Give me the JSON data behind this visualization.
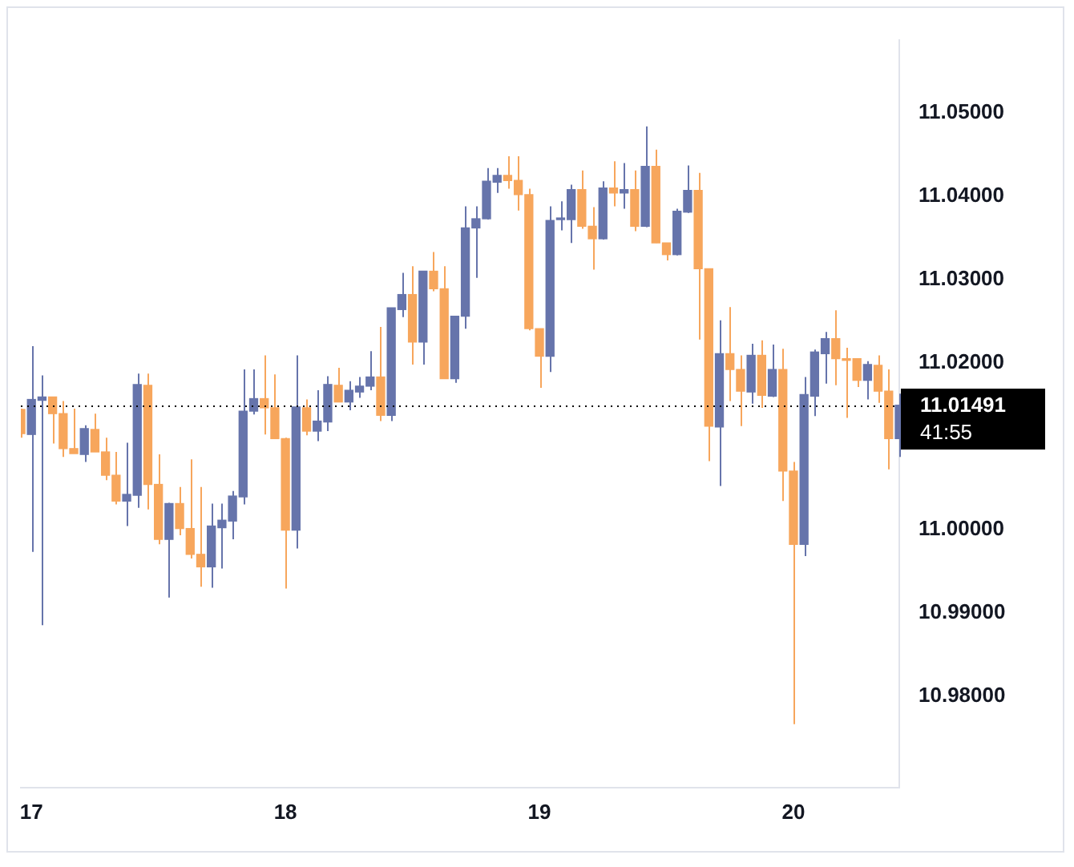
{
  "chart_data": {
    "type": "candlestick",
    "categories": [
      null,
      "17",
      null,
      null,
      null,
      null,
      null,
      null,
      null,
      null,
      null,
      null,
      null,
      null,
      null,
      null,
      null,
      null,
      null,
      null,
      null,
      null,
      null,
      null,
      null,
      "18",
      null,
      null,
      null,
      null,
      null,
      null,
      null,
      null,
      null,
      null,
      null,
      null,
      null,
      null,
      null,
      null,
      null,
      null,
      null,
      null,
      null,
      null,
      null,
      "19",
      null,
      null,
      null,
      null,
      null,
      null,
      null,
      null,
      null,
      null,
      null,
      null,
      null,
      null,
      null,
      null,
      null,
      null,
      null,
      null,
      null,
      null,
      null,
      "20",
      null,
      null,
      null,
      null,
      null,
      null,
      null,
      null,
      null,
      null
    ],
    "ohlc": [
      [
        11.0144,
        11.0145,
        11.011,
        11.0115
      ],
      [
        11.0114,
        11.022,
        10.9973,
        11.0156
      ],
      [
        11.0155,
        11.0185,
        10.9885,
        11.0159
      ],
      [
        11.0159,
        11.0159,
        11.0103,
        11.0139
      ],
      [
        11.0139,
        11.0154,
        11.0087,
        11.0097
      ],
      [
        11.0097,
        11.0145,
        11.0091,
        11.0091
      ],
      [
        11.009,
        11.0125,
        11.0081,
        11.0121
      ],
      [
        11.012,
        11.0139,
        11.0093,
        11.0093
      ],
      [
        11.0093,
        11.011,
        11.0059,
        11.0065
      ],
      [
        11.0065,
        11.0093,
        11.003,
        11.0034
      ],
      [
        11.0034,
        11.0104,
        11.0004,
        11.0042
      ],
      [
        11.0041,
        11.0187,
        11.0026,
        11.0174
      ],
      [
        11.0173,
        11.0187,
        11.0024,
        11.0054
      ],
      [
        11.0054,
        11.009,
        10.9982,
        10.9988
      ],
      [
        10.9988,
        11.0032,
        10.9918,
        11.0031
      ],
      [
        11.0031,
        11.0051,
        10.9993,
        11.0001
      ],
      [
        11.0001,
        11.0084,
        10.9965,
        10.997
      ],
      [
        10.997,
        11.0051,
        10.9931,
        10.9955
      ],
      [
        10.9955,
        11.0031,
        10.993,
        11.0004
      ],
      [
        11.0002,
        11.0031,
        10.9953,
        11.0011
      ],
      [
        11.001,
        11.0046,
        10.9988,
        11.004
      ],
      [
        11.0039,
        11.0192,
        11.003,
        11.0142
      ],
      [
        11.0142,
        11.0192,
        11.0138,
        11.0157
      ],
      [
        11.0157,
        11.0209,
        11.0114,
        11.0146
      ],
      [
        11.0146,
        11.0186,
        11.0109,
        11.0109
      ],
      [
        11.0109,
        11.011,
        10.9929,
        10.9999
      ],
      [
        10.9999,
        11.0209,
        10.9977,
        11.0147
      ],
      [
        11.0146,
        11.0156,
        11.0113,
        11.0118
      ],
      [
        11.0118,
        11.0167,
        11.0106,
        11.013
      ],
      [
        11.0129,
        11.0184,
        11.0118,
        11.0174
      ],
      [
        11.0173,
        11.0194,
        11.0153,
        11.0153
      ],
      [
        11.0153,
        11.0178,
        11.0143,
        11.0167
      ],
      [
        11.0165,
        11.0183,
        11.0158,
        11.0172
      ],
      [
        11.0172,
        11.0214,
        11.0167,
        11.0183
      ],
      [
        11.0183,
        11.0243,
        11.013,
        11.0137
      ],
      [
        11.0137,
        11.0266,
        11.013,
        11.0266
      ],
      [
        11.0264,
        11.0308,
        11.0255,
        11.0282
      ],
      [
        11.0282,
        11.0316,
        11.0198,
        11.0225
      ],
      [
        11.0225,
        11.031,
        11.0198,
        11.031
      ],
      [
        11.031,
        11.0333,
        11.0286,
        11.0289
      ],
      [
        11.0289,
        11.0316,
        11.0181,
        11.0181
      ],
      [
        11.0181,
        11.0256,
        11.0176,
        11.0256
      ],
      [
        11.0256,
        11.0388,
        11.0241,
        11.0362
      ],
      [
        11.0362,
        11.0388,
        11.0302,
        11.0373
      ],
      [
        11.0373,
        11.0434,
        11.0372,
        11.0418
      ],
      [
        11.0417,
        11.0434,
        11.0404,
        11.0425
      ],
      [
        11.0425,
        11.0448,
        11.0409,
        11.0419
      ],
      [
        11.0419,
        11.0448,
        11.0383,
        11.0402
      ],
      [
        11.0402,
        11.0409,
        11.0239,
        11.0241
      ],
      [
        11.0241,
        11.0241,
        11.017,
        11.0208
      ],
      [
        11.0208,
        11.0388,
        11.0189,
        11.0371
      ],
      [
        11.0372,
        11.0394,
        11.0359,
        11.0373
      ],
      [
        11.0372,
        11.0414,
        11.0344,
        11.0408
      ],
      [
        11.0408,
        11.0431,
        11.0361,
        11.0364
      ],
      [
        11.0364,
        11.0387,
        11.0312,
        11.0349
      ],
      [
        11.0349,
        11.0418,
        11.0348,
        11.041
      ],
      [
        11.041,
        11.0442,
        11.0388,
        11.0404
      ],
      [
        11.0404,
        11.044,
        11.0385,
        11.0408
      ],
      [
        11.0408,
        11.0431,
        11.0358,
        11.0364
      ],
      [
        11.0364,
        11.0484,
        11.0363,
        11.0436
      ],
      [
        11.0436,
        11.0456,
        11.0344,
        11.0344
      ],
      [
        11.0344,
        11.0344,
        11.0323,
        11.033
      ],
      [
        11.033,
        11.0385,
        11.0329,
        11.0382
      ],
      [
        11.0381,
        11.0437,
        11.038,
        11.0407
      ],
      [
        11.0407,
        11.0428,
        11.0228,
        11.0313
      ],
      [
        11.0313,
        11.0313,
        11.0082,
        11.0124
      ],
      [
        11.0123,
        11.0251,
        11.0052,
        11.0211
      ],
      [
        11.0211,
        11.0267,
        11.0154,
        11.0192
      ],
      [
        11.0192,
        11.0209,
        11.0124,
        11.0166
      ],
      [
        11.0165,
        11.0223,
        11.0151,
        11.0209
      ],
      [
        11.0209,
        11.0227,
        11.0146,
        11.0161
      ],
      [
        11.016,
        11.0222,
        11.0159,
        11.0192
      ],
      [
        11.0192,
        11.0217,
        11.0034,
        11.007
      ],
      [
        11.007,
        11.0081,
        10.9766,
        10.9982
      ],
      [
        10.9982,
        11.0183,
        10.9968,
        11.0162
      ],
      [
        11.016,
        11.0216,
        11.0136,
        11.0213
      ],
      [
        11.0211,
        11.0237,
        11.0175,
        11.0229
      ],
      [
        11.0229,
        11.0263,
        11.0173,
        11.0205
      ],
      [
        11.0205,
        11.0218,
        11.0134,
        11.0203
      ],
      [
        11.0205,
        11.0205,
        11.0171,
        11.0179
      ],
      [
        11.0179,
        11.0202,
        11.0156,
        11.0198
      ],
      [
        11.0197,
        11.0209,
        11.0152,
        11.0166
      ],
      [
        11.0166,
        11.0192,
        11.0072,
        11.0109
      ],
      [
        11.0109,
        11.0163,
        11.0087,
        11.01491
      ]
    ],
    "colors": [
      "#f7a65c",
      "#6674ab",
      "#6674ab",
      "#f7a65c",
      "#f7a65c",
      "#f7a65c",
      "#6674ab",
      "#f7a65c",
      "#f7a65c",
      "#f7a65c",
      "#6674ab",
      "#6674ab",
      "#f7a65c",
      "#f7a65c",
      "#6674ab",
      "#f7a65c",
      "#f7a65c",
      "#f7a65c",
      "#6674ab",
      "#6674ab",
      "#6674ab",
      "#6674ab",
      "#6674ab",
      "#f7a65c",
      "#f7a65c",
      "#f7a65c",
      "#6674ab",
      "#f7a65c",
      "#6674ab",
      "#6674ab",
      "#f7a65c",
      "#6674ab",
      "#6674ab",
      "#6674ab",
      "#f7a65c",
      "#6674ab",
      "#6674ab",
      "#f7a65c",
      "#6674ab",
      "#f7a65c",
      "#f7a65c",
      "#6674ab",
      "#6674ab",
      "#6674ab",
      "#6674ab",
      "#6674ab",
      "#f7a65c",
      "#f7a65c",
      "#f7a65c",
      "#f7a65c",
      "#6674ab",
      "#6674ab",
      "#6674ab",
      "#f7a65c",
      "#f7a65c",
      "#6674ab",
      "#f7a65c",
      "#6674ab",
      "#f7a65c",
      "#6674ab",
      "#f7a65c",
      "#f7a65c",
      "#6674ab",
      "#6674ab",
      "#f7a65c",
      "#f7a65c",
      "#6674ab",
      "#f7a65c",
      "#f7a65c",
      "#6674ab",
      "#f7a65c",
      "#6674ab",
      "#f7a65c",
      "#f7a65c",
      "#6674ab",
      "#6674ab",
      "#6674ab",
      "#f7a65c",
      "#f7a65c",
      "#f7a65c",
      "#6674ab",
      "#f7a65c",
      "#f7a65c",
      "#6674ab"
    ],
    "ylim": [
      10.969,
      11.0588
    ],
    "yticks": [
      {
        "value": 10.98,
        "label": "10.98000"
      },
      {
        "value": 10.99,
        "label": "10.99000"
      },
      {
        "value": 11.0,
        "label": "11.00000"
      },
      {
        "value": 11.02,
        "label": "11.02000"
      },
      {
        "value": 11.03,
        "label": "11.03000"
      },
      {
        "value": 11.04,
        "label": "11.04000"
      },
      {
        "value": 11.05,
        "label": "11.05000"
      }
    ],
    "ref_lines": [
      {
        "axis": "y",
        "value": 11.01491,
        "label": "11.01491",
        "color": "#000000",
        "line_style": "dotted"
      }
    ],
    "annotations": [
      "41:55"
    ],
    "grid": false,
    "legend": false
  }
}
